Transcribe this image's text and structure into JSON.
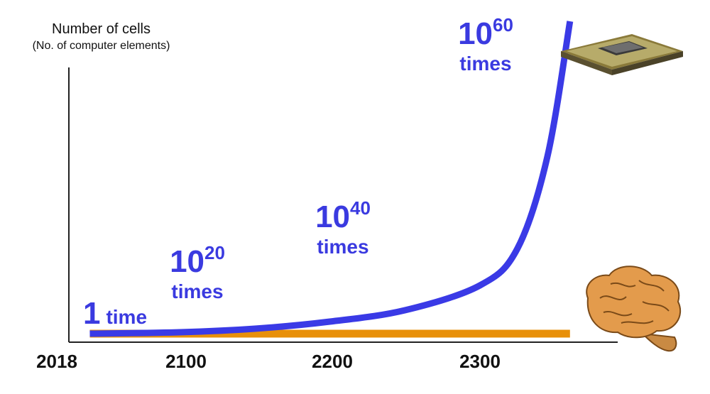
{
  "chart_data": {
    "type": "line",
    "ylabel": "Number of cells",
    "ylabel_sub": "(No. of computer elements)",
    "x_ticks": [
      "2018",
      "2100",
      "2200",
      "2300"
    ],
    "series": [
      {
        "color": "#3a3ae6",
        "x": [
          2040,
          2100,
          2150,
          2200,
          2250,
          2300,
          2325,
          2345,
          2360
        ],
        "y": [
          0,
          2,
          7,
          17,
          33,
          68,
          120,
          250,
          440
        ]
      },
      {
        "color": "#e8900a",
        "x": [
          2040,
          2360
        ],
        "y": [
          0,
          0
        ]
      }
    ],
    "annotations": [
      {
        "base": "1",
        "exp": "",
        "word": "time"
      },
      {
        "base": "10",
        "exp": "20",
        "word": "times"
      },
      {
        "base": "10",
        "exp": "40",
        "word": "times"
      },
      {
        "base": "10",
        "exp": "60",
        "word": "times"
      }
    ],
    "axis_color": "#222222",
    "annotation_color": "#3a3ae0"
  }
}
